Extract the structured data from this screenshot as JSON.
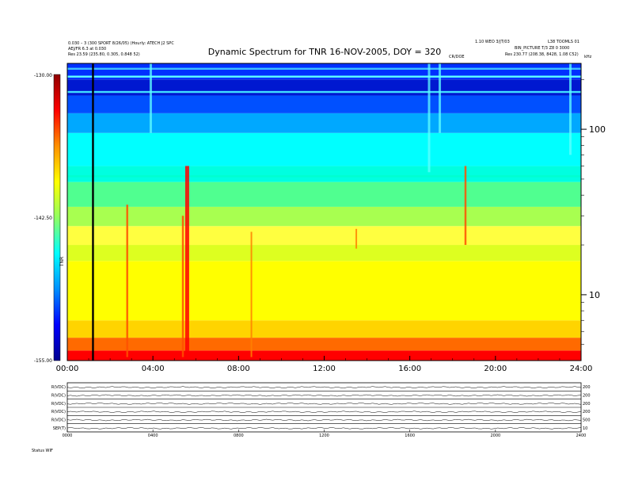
{
  "header": {
    "left_line1": "0.030 – 3 (300 SPORT 8/26/05) (Hourly: ATECH J2 SPC",
    "left_line2": "AEJ/FR 6.3 at 0.030",
    "left_line3": "Res  23.59 (235.80, 0.305, 0.848 52)",
    "right_line1": "1.10 WEO 3/JT/03",
    "right_line2": "L38 TOOMLS 01",
    "right_line3": "BIN_PICTURE  T/3 Z8 0 3000",
    "right_line4": "Res  230.77 (208.38, 8428, 1.08 C52)",
    "right_center": "CR/DOE",
    "freq_unit": "kHz"
  },
  "chart_data": {
    "type": "heatmap",
    "title": "Dynamic Spectrum for TNR 16-NOV-2005, DOY = 320",
    "x_axis": {
      "ticks": [
        "00:00",
        "04:00",
        "08:00",
        "12:00",
        "16:00",
        "20:00",
        "24:00"
      ],
      "range_hours": [
        0,
        24
      ]
    },
    "y_axis": {
      "scale": "log",
      "ticks": [
        {
          "value": 10,
          "label": "10"
        },
        {
          "value": 100,
          "label": "100"
        }
      ],
      "range_khz": [
        4,
        250
      ]
    },
    "colorbar": {
      "label": "TNR",
      "ticks": [
        "-130.00",
        "-142.50",
        "-155.00"
      ],
      "range": [
        -155,
        -130
      ],
      "colors": [
        "#000090",
        "#0000ff",
        "#0090ff",
        "#00ffff",
        "#90ff60",
        "#ffff00",
        "#ff9000",
        "#ff0000",
        "#900000"
      ]
    },
    "marker_line_hour": 1.2,
    "bands": [
      {
        "from_khz": 4.0,
        "to_khz": 4.6,
        "color": "#ff0000"
      },
      {
        "from_khz": 4.6,
        "to_khz": 5.5,
        "color": "#ff6a00"
      },
      {
        "from_khz": 5.5,
        "to_khz": 7.0,
        "color": "#ffd400"
      },
      {
        "from_khz": 7.0,
        "to_khz": 16.0,
        "color": "#ffff00"
      },
      {
        "from_khz": 16.0,
        "to_khz": 20.0,
        "color": "#ddff20"
      },
      {
        "from_khz": 20.0,
        "to_khz": 26.0,
        "color": "#ffff40"
      },
      {
        "from_khz": 26.0,
        "to_khz": 34.0,
        "color": "#a8ff50"
      },
      {
        "from_khz": 34.0,
        "to_khz": 48.0,
        "color": "#50ff90"
      },
      {
        "from_khz": 48.0,
        "to_khz": 60.0,
        "color": "#00ffe0"
      },
      {
        "from_khz": 60.0,
        "to_khz": 95.0,
        "color": "#00ffff"
      },
      {
        "from_khz": 95.0,
        "to_khz": 125.0,
        "color": "#00a8ff"
      },
      {
        "from_khz": 125.0,
        "to_khz": 160.0,
        "color": "#0050ff"
      },
      {
        "from_khz": 160.0,
        "to_khz": 200.0,
        "color": "#0018d0"
      },
      {
        "from_khz": 200.0,
        "to_khz": 250.0,
        "color": "#0030ff"
      }
    ],
    "horizontal_lines": [
      {
        "khz": 52,
        "color": "#00ffd0"
      },
      {
        "khz": 168,
        "color": "#40e0ff"
      },
      {
        "khz": 208,
        "color": "#60ffff"
      },
      {
        "khz": 232,
        "color": "#40c0ff"
      }
    ],
    "events": [
      {
        "hour": 5.6,
        "khz_low": 4.2,
        "khz_high": 60,
        "intensity": "high"
      },
      {
        "hour": 5.4,
        "khz_low": 4.2,
        "khz_high": 30,
        "intensity": "medium"
      },
      {
        "hour": 2.8,
        "khz_low": 4.2,
        "khz_high": 35,
        "intensity": "medium"
      },
      {
        "hour": 8.6,
        "khz_low": 4.2,
        "khz_high": 24,
        "intensity": "low"
      },
      {
        "hour": 13.5,
        "khz_low": 19,
        "khz_high": 25,
        "intensity": "low"
      },
      {
        "hour": 18.6,
        "khz_low": 20,
        "khz_high": 60,
        "intensity": "medium"
      },
      {
        "hour": 16.9,
        "khz_low": 55,
        "khz_high": 250,
        "intensity": "cyan"
      },
      {
        "hour": 17.4,
        "khz_low": 95,
        "khz_high": 250,
        "intensity": "cyan"
      },
      {
        "hour": 3.9,
        "khz_low": 95,
        "khz_high": 250,
        "intensity": "cyan"
      },
      {
        "hour": 23.5,
        "khz_low": 70,
        "khz_high": 250,
        "intensity": "cyan"
      }
    ]
  },
  "sub_panels": {
    "labels": [
      "R(VDC)",
      "R(VDC)",
      "R(VDC)",
      "R(VDC)",
      "R(VDC)",
      "SEP(T)"
    ],
    "right_labels": [
      "200",
      "200",
      "200",
      "200",
      "500",
      "10"
    ],
    "x_ticks": [
      "0000",
      "0400",
      "0800",
      "1200",
      "1600",
      "2000",
      "2400"
    ],
    "footer": "Status  WIF"
  }
}
